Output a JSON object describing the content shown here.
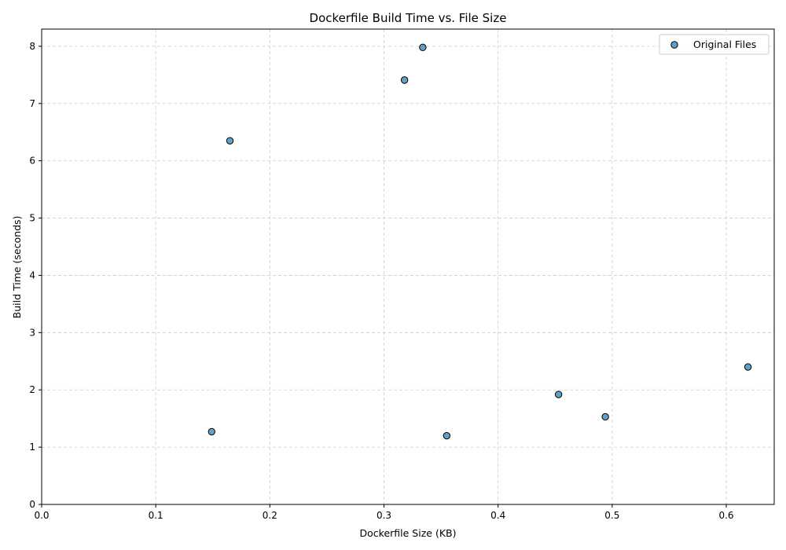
{
  "chart_data": {
    "type": "scatter",
    "title": "Dockerfile Build Time vs. File Size",
    "xlabel": "Dockerfile Size (KB)",
    "ylabel": "Build Time (seconds)",
    "xlim": [
      0.0,
      0.642
    ],
    "ylim": [
      0,
      8.3
    ],
    "xticks": [
      0.0,
      0.1,
      0.2,
      0.3,
      0.4,
      0.5,
      0.6
    ],
    "xtick_labels": [
      "0.0",
      "0.1",
      "0.2",
      "0.3",
      "0.4",
      "0.5",
      "0.6"
    ],
    "yticks": [
      0,
      1,
      2,
      3,
      4,
      5,
      6,
      7,
      8
    ],
    "ytick_labels": [
      "0",
      "1",
      "2",
      "3",
      "4",
      "5",
      "6",
      "7",
      "8"
    ],
    "grid": true,
    "legend_position": "top-right",
    "series": [
      {
        "name": "Original Files",
        "color": "#1f77b4",
        "edge_color": "#000000",
        "points": [
          {
            "x": 0.149,
            "y": 1.27
          },
          {
            "x": 0.165,
            "y": 6.35
          },
          {
            "x": 0.318,
            "y": 7.41
          },
          {
            "x": 0.334,
            "y": 7.98
          },
          {
            "x": 0.355,
            "y": 1.2
          },
          {
            "x": 0.453,
            "y": 1.92
          },
          {
            "x": 0.494,
            "y": 1.53
          },
          {
            "x": 0.619,
            "y": 2.4
          }
        ]
      }
    ]
  }
}
